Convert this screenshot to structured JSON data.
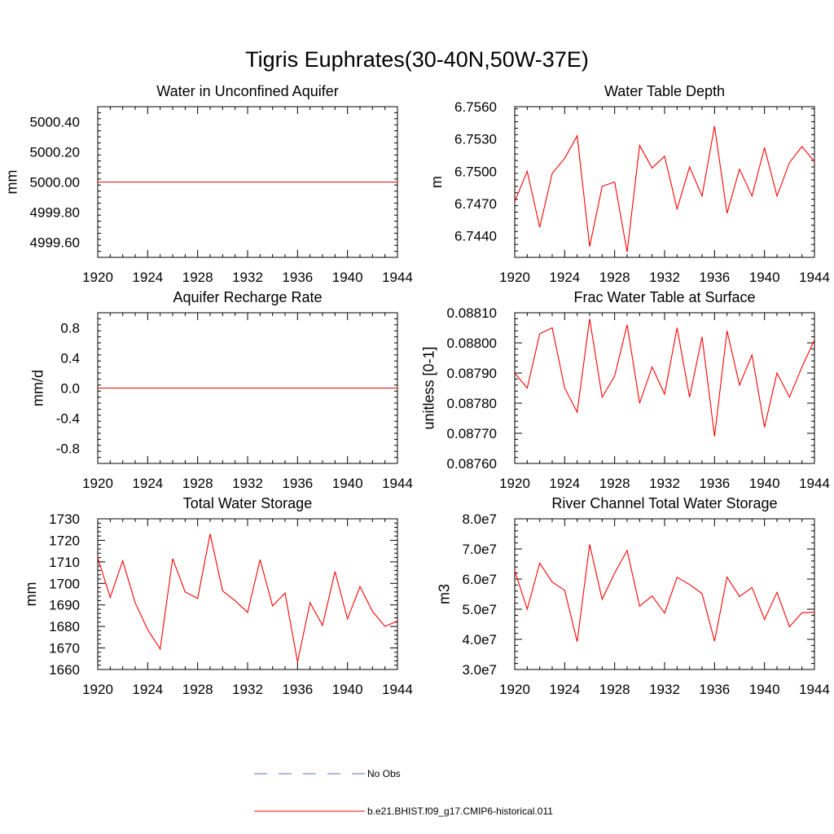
{
  "title": "Tigris Euphrates(30-40N,50W-37E)",
  "legend": {
    "placement": "bottom-center",
    "entries": [
      {
        "label": "No Obs",
        "color": "#5a6fb0",
        "dashed": true
      },
      {
        "label": "b.e21.BHIST.f09_g17.CMIP6-historical.011",
        "color": "#ff0000",
        "dashed": false
      }
    ]
  },
  "chart_data": [
    {
      "type": "line",
      "title": "Water in Unconfined Aquifer",
      "xlabel": "",
      "ylabel": "mm",
      "xlim": [
        1920,
        1944
      ],
      "ylim": [
        4999.5,
        5000.5
      ],
      "xticks": [
        1920,
        1924,
        1928,
        1932,
        1936,
        1940,
        1944
      ],
      "yticks": [
        4999.6,
        4999.8,
        5000.0,
        5000.2,
        5000.4
      ],
      "ytick_labels": [
        "4999.60",
        "4999.80",
        "5000.00",
        "5000.20",
        "5000.40"
      ],
      "grid": false,
      "x": [
        1920,
        1921,
        1922,
        1923,
        1924,
        1925,
        1926,
        1927,
        1928,
        1929,
        1930,
        1931,
        1932,
        1933,
        1934,
        1935,
        1936,
        1937,
        1938,
        1939,
        1940,
        1941,
        1942,
        1943,
        1944
      ],
      "series": [
        {
          "color": "#ff0000",
          "values": [
            5000,
            5000,
            5000,
            5000,
            5000,
            5000,
            5000,
            5000,
            5000,
            5000,
            5000,
            5000,
            5000,
            5000,
            5000,
            5000,
            5000,
            5000,
            5000,
            5000,
            5000,
            5000,
            5000,
            5000,
            5000
          ]
        }
      ]
    },
    {
      "type": "line",
      "title": "Water Table Depth",
      "xlabel": "",
      "ylabel": "m",
      "xlim": [
        1920,
        1944
      ],
      "ylim": [
        6.742,
        6.756
      ],
      "xticks": [
        1920,
        1924,
        1928,
        1932,
        1936,
        1940,
        1944
      ],
      "yticks": [
        6.744,
        6.747,
        6.75,
        6.753,
        6.756
      ],
      "ytick_labels": [
        "6.7440",
        "6.7470",
        "6.7500",
        "6.7530",
        "6.7560"
      ],
      "grid": false,
      "x": [
        1920,
        1921,
        1922,
        1923,
        1924,
        1925,
        1926,
        1927,
        1928,
        1929,
        1930,
        1931,
        1932,
        1933,
        1934,
        1935,
        1936,
        1937,
        1938,
        1939,
        1940,
        1941,
        1942,
        1943,
        1944
      ],
      "series": [
        {
          "color": "#ff0000",
          "values": [
            6.7472,
            6.75,
            6.7448,
            6.7498,
            6.7512,
            6.7533,
            6.743,
            6.7486,
            6.749,
            6.7425,
            6.7524,
            6.7503,
            6.7514,
            6.7465,
            6.7504,
            6.7477,
            6.7542,
            6.7461,
            6.7502,
            6.7477,
            6.7522,
            6.7477,
            6.7508,
            6.7523,
            6.7509
          ]
        }
      ]
    },
    {
      "type": "line",
      "title": "Aquifer Recharge Rate",
      "xlabel": "",
      "ylabel": "mm/d",
      "xlim": [
        1920,
        1944
      ],
      "ylim": [
        -1.0,
        1.0
      ],
      "xticks": [
        1920,
        1924,
        1928,
        1932,
        1936,
        1940,
        1944
      ],
      "yticks": [
        -0.8,
        -0.4,
        0.0,
        0.4,
        0.8
      ],
      "ytick_labels": [
        "-0.8",
        "-0.4",
        "0.0",
        "0.4",
        "0.8"
      ],
      "grid": false,
      "x": [
        1920,
        1921,
        1922,
        1923,
        1924,
        1925,
        1926,
        1927,
        1928,
        1929,
        1930,
        1931,
        1932,
        1933,
        1934,
        1935,
        1936,
        1937,
        1938,
        1939,
        1940,
        1941,
        1942,
        1943,
        1944
      ],
      "series": [
        {
          "color": "#ff0000",
          "values": [
            0,
            0,
            0,
            0,
            0,
            0,
            0,
            0,
            0,
            0,
            0,
            0,
            0,
            0,
            0,
            0,
            0,
            0,
            0,
            0,
            0,
            0,
            0,
            0,
            0
          ]
        }
      ]
    },
    {
      "type": "line",
      "title": "Frac Water Table at Surface",
      "xlabel": "",
      "ylabel": "unitless [0-1]",
      "xlim": [
        1920,
        1944
      ],
      "ylim": [
        0.0876,
        0.0881
      ],
      "xticks": [
        1920,
        1924,
        1928,
        1932,
        1936,
        1940,
        1944
      ],
      "yticks": [
        0.0876,
        0.0877,
        0.0878,
        0.0879,
        0.088,
        0.0881
      ],
      "ytick_labels": [
        "0.08760",
        "0.08770",
        "0.08780",
        "0.08790",
        "0.08800",
        "0.08810"
      ],
      "grid": false,
      "x": [
        1920,
        1921,
        1922,
        1923,
        1924,
        1925,
        1926,
        1927,
        1928,
        1929,
        1930,
        1931,
        1932,
        1933,
        1934,
        1935,
        1936,
        1937,
        1938,
        1939,
        1940,
        1941,
        1942,
        1943,
        1944
      ],
      "series": [
        {
          "color": "#ff0000",
          "values": [
            0.0879,
            0.08785,
            0.08803,
            0.08805,
            0.08785,
            0.08777,
            0.08808,
            0.08782,
            0.08789,
            0.08806,
            0.0878,
            0.08792,
            0.08783,
            0.08805,
            0.08782,
            0.08802,
            0.08769,
            0.08804,
            0.08786,
            0.08796,
            0.08772,
            0.0879,
            0.08782,
            0.08792,
            0.08801
          ]
        }
      ]
    },
    {
      "type": "line",
      "title": "Total Water Storage",
      "xlabel": "",
      "ylabel": "mm",
      "xlim": [
        1920,
        1944
      ],
      "ylim": [
        1660,
        1730
      ],
      "xticks": [
        1920,
        1924,
        1928,
        1932,
        1936,
        1940,
        1944
      ],
      "yticks": [
        1660,
        1670,
        1680,
        1690,
        1700,
        1710,
        1720,
        1730
      ],
      "ytick_labels": [
        "1660",
        "1670",
        "1680",
        "1690",
        "1700",
        "1710",
        "1720",
        "1730"
      ],
      "grid": false,
      "x": [
        1920,
        1921,
        1922,
        1923,
        1924,
        1925,
        1926,
        1927,
        1928,
        1929,
        1930,
        1931,
        1932,
        1933,
        1934,
        1935,
        1936,
        1937,
        1938,
        1939,
        1940,
        1941,
        1942,
        1943,
        1944
      ],
      "series": [
        {
          "color": "#ff0000",
          "values": [
            1712,
            1693.5,
            1710.5,
            1691,
            1678.5,
            1669.5,
            1711.5,
            1696,
            1693,
            1723,
            1696.5,
            1692,
            1686.5,
            1711,
            1689.5,
            1695.5,
            1663.5,
            1691,
            1680.5,
            1705.5,
            1683.5,
            1698.5,
            1687,
            1680,
            1682.5
          ]
        }
      ]
    },
    {
      "type": "line",
      "title": "River Channel Total Water Storage",
      "xlabel": "",
      "ylabel": "m3",
      "xlim": [
        1920,
        1944
      ],
      "ylim": [
        30000000,
        80000000
      ],
      "xticks": [
        1920,
        1924,
        1928,
        1932,
        1936,
        1940,
        1944
      ],
      "yticks": [
        30000000,
        40000000,
        50000000,
        60000000,
        70000000,
        80000000
      ],
      "ytick_labels": [
        "3.0e7",
        "4.0e7",
        "5.0e7",
        "6.0e7",
        "7.0e7",
        "8.0e7"
      ],
      "grid": false,
      "x": [
        1920,
        1921,
        1922,
        1923,
        1924,
        1925,
        1926,
        1927,
        1928,
        1929,
        1930,
        1931,
        1932,
        1933,
        1934,
        1935,
        1936,
        1937,
        1938,
        1939,
        1940,
        1941,
        1942,
        1943,
        1944
      ],
      "series": [
        {
          "color": "#ff0000",
          "values": [
            62800000,
            50000000,
            65300000,
            59000000,
            56300000,
            39200000,
            71500000,
            53300000,
            62000000,
            69500000,
            51000000,
            54400000,
            48700000,
            60600000,
            58200000,
            55200000,
            39400000,
            60700000,
            54200000,
            57200000,
            46600000,
            55600000,
            44200000,
            48800000,
            49000000
          ]
        }
      ]
    }
  ]
}
